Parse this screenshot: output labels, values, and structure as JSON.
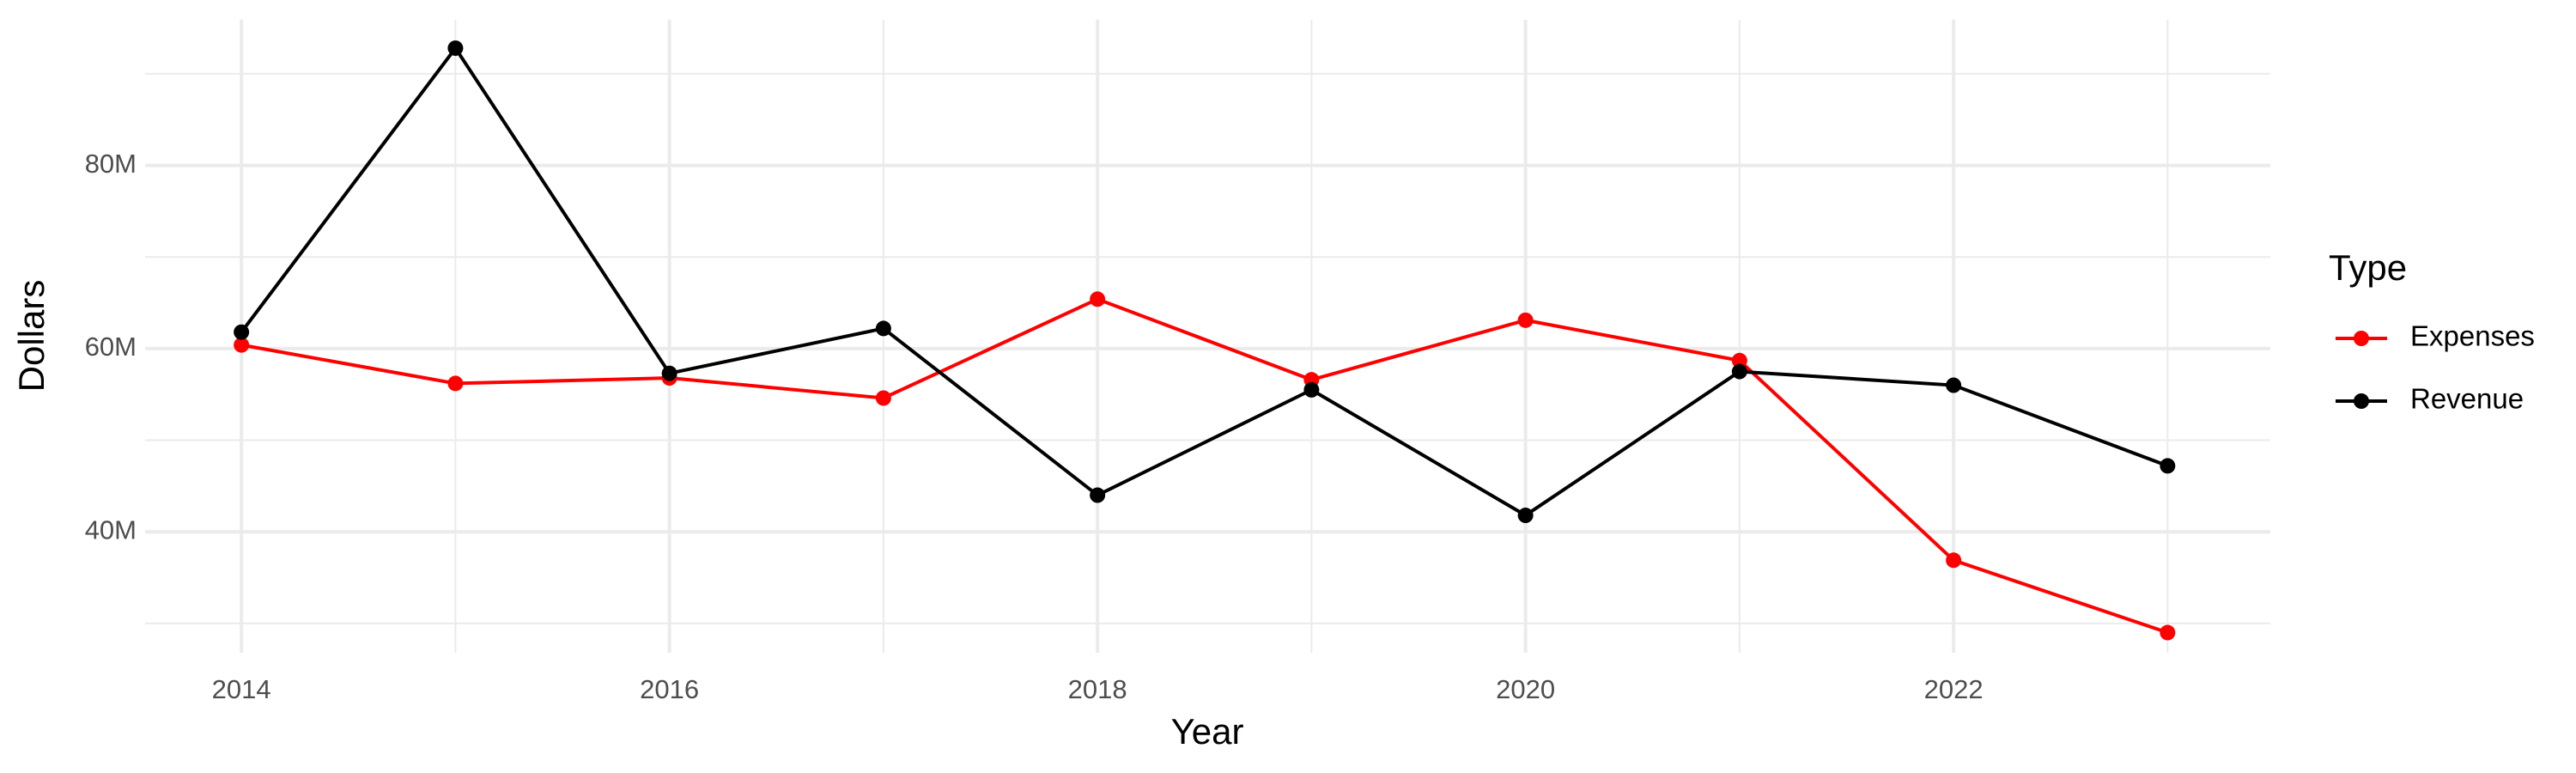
{
  "chart_data": {
    "type": "line",
    "x_label": "Year",
    "y_label": "Dollars",
    "legend_title": "Type",
    "legend_position": "right",
    "x": [
      2014,
      2015,
      2016,
      2017,
      2018,
      2019,
      2020,
      2021,
      2022,
      2023
    ],
    "series": [
      {
        "name": "Expenses",
        "color": "#ff0000",
        "values": [
          60400000,
          56200000,
          56800000,
          54600000,
          65400000,
          56600000,
          63100000,
          58700000,
          36900000,
          29000000
        ]
      },
      {
        "name": "Revenue",
        "color": "#000000",
        "values": [
          61800000,
          92800000,
          57300000,
          62200000,
          44000000,
          55500000,
          41800000,
          57500000,
          56000000,
          47200000
        ]
      }
    ],
    "xlim": [
      2013.55,
      2023.48
    ],
    "xticks": [
      2014,
      2016,
      2018,
      2020,
      2022
    ],
    "ylim": [
      26800000,
      95900000
    ],
    "yticks": [
      {
        "value": 40000000,
        "label": "40M"
      },
      {
        "value": 60000000,
        "label": "60M"
      },
      {
        "value": 80000000,
        "label": "80M"
      }
    ],
    "grid": true
  }
}
